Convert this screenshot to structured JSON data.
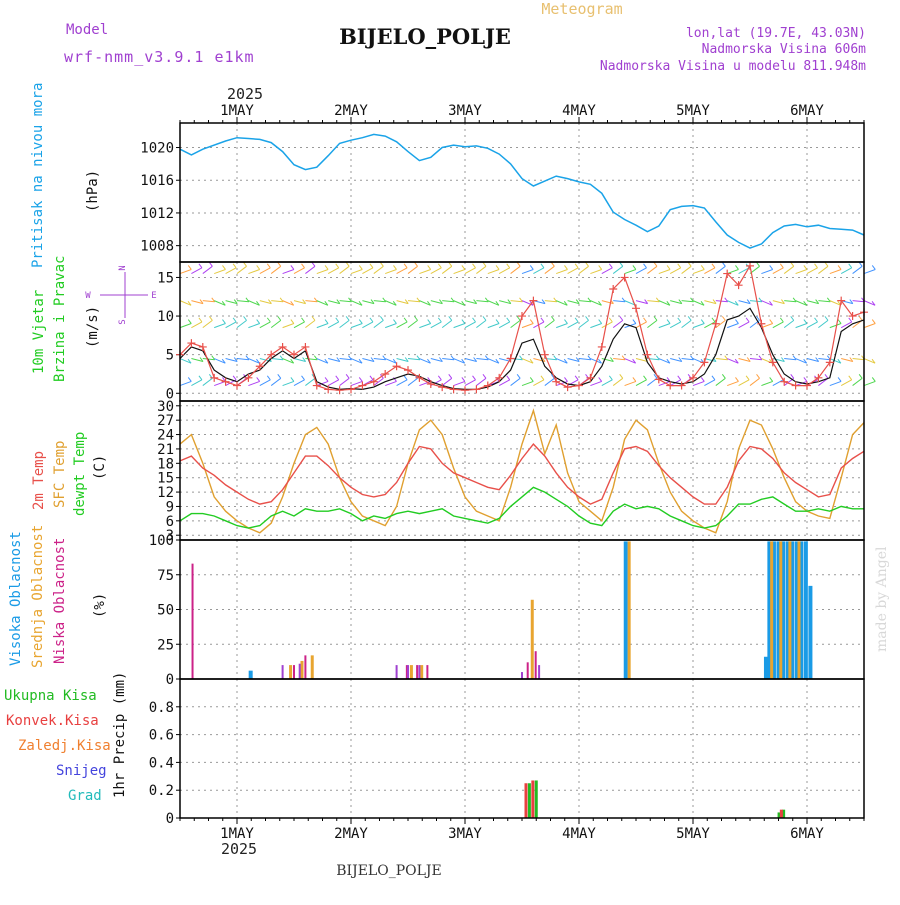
{
  "header": {
    "model_label": "Model",
    "model_name": "wrf-nmm_v3.9.1 e1km",
    "title": "BIJELO_POLJE",
    "subtitle": "Meteogram",
    "lonlat": "lon,lat (19.7E, 43.03N)",
    "altitude": "Nadmorska Visina 606m",
    "model_altitude": "Nadmorska Visina u modelu 811.948m",
    "credit": "made by Angel",
    "footer": "BIJELO_POLJE"
  },
  "colors": {
    "pressure": "#1aa3e8",
    "t2m": "#e8504a",
    "sfc": "#e0a030",
    "dewpt": "#22cc22",
    "high_cloud": "#1a9be6",
    "mid_cloud": "#e8a530",
    "low_cloud": "#cc2288",
    "purple": "#a040d0",
    "total_precip": "#22bb22",
    "conv_precip": "#e84040",
    "frozen_precip": "#f08030",
    "snow": "#4444dd",
    "hail": "#22bbbb"
  },
  "time_axis": {
    "year": "2025",
    "labels": [
      "1MAY",
      "2MAY",
      "3MAY",
      "4MAY",
      "5MAY",
      "6MAY"
    ]
  },
  "panels": {
    "pressure": {
      "label": "Pritisak na nivou mora",
      "unit": "(hPa)"
    },
    "wind": {
      "label1": "10m Vjetar",
      "label2": "Brzina i Pravac",
      "unit": "(m/s)",
      "compass_n": "N",
      "compass_w": "W",
      "compass_e": "E",
      "compass_s": "S"
    },
    "temp": {
      "label1": "2m Temp",
      "label2": "SFC Temp",
      "label3": "dewpt Temp",
      "unit": "(C)"
    },
    "cloud": {
      "label1": "Visoka Oblacnost",
      "label2": "Srednja Oblacnost",
      "label3": "Niska Oblacnost",
      "unit": "(%)"
    },
    "precip": {
      "label1": "Ukupna Kisa",
      "label2": "Konvek.Kisa",
      "label3": "Zaledj.Kisa",
      "label4": "Snijeg",
      "label5": "Grad",
      "unit": "1hr Precip (mm)"
    }
  },
  "chart_data": [
    {
      "type": "line",
      "name": "pressure",
      "x": [
        0.5,
        0.6,
        0.7,
        0.9,
        1.0,
        1.1,
        1.2,
        1.3,
        1.4,
        1.5,
        1.6,
        1.7,
        1.8,
        1.9,
        2.0,
        2.1,
        2.2,
        2.3,
        2.4,
        2.5,
        2.6,
        2.7,
        2.8,
        2.9,
        3.0,
        3.1,
        3.2,
        3.3,
        3.4,
        3.5,
        3.6,
        3.7,
        3.8,
        3.9,
        4.0,
        4.1,
        4.2,
        4.3,
        4.4,
        4.5,
        4.6,
        4.7,
        4.8,
        4.9,
        5.0,
        5.1,
        5.2,
        5.3,
        5.4,
        5.5,
        5.6,
        5.7,
        5.8,
        5.9,
        6.0,
        6.1,
        6.2,
        6.3,
        6.4,
        6.5
      ],
      "values": [
        1019.8,
        1019.1,
        1019.8,
        1020.8,
        1021.2,
        1021.1,
        1021.0,
        1020.6,
        1019.5,
        1017.9,
        1017.3,
        1017.6,
        1019.0,
        1020.5,
        1020.9,
        1021.2,
        1021.6,
        1021.4,
        1020.7,
        1019.5,
        1018.4,
        1018.8,
        1020.0,
        1020.3,
        1020.1,
        1020.2,
        1019.9,
        1019.2,
        1018.0,
        1016.2,
        1015.3,
        1015.9,
        1016.5,
        1016.2,
        1015.8,
        1015.5,
        1014.4,
        1012.1,
        1011.2,
        1010.5,
        1009.7,
        1010.4,
        1012.4,
        1012.8,
        1012.9,
        1012.6,
        1010.9,
        1009.3,
        1008.4,
        1007.7,
        1008.2,
        1009.6,
        1010.4,
        1010.6,
        1010.3,
        1010.5,
        1010.1,
        1010.0,
        1009.9,
        1009.3
      ],
      "ylim": [
        1006,
        1023
      ],
      "yticks": [
        1008,
        1012,
        1016,
        1020
      ],
      "xlim": [
        0.5,
        6.5
      ]
    },
    {
      "type": "line",
      "name": "wind",
      "x": [
        0.5,
        0.6,
        0.7,
        0.8,
        0.9,
        1.0,
        1.1,
        1.2,
        1.3,
        1.4,
        1.5,
        1.6,
        1.7,
        1.8,
        1.9,
        2.0,
        2.1,
        2.2,
        2.3,
        2.4,
        2.5,
        2.6,
        2.7,
        2.8,
        2.9,
        3.0,
        3.1,
        3.2,
        3.3,
        3.4,
        3.5,
        3.6,
        3.7,
        3.8,
        3.9,
        4.0,
        4.1,
        4.2,
        4.3,
        4.4,
        4.5,
        4.6,
        4.7,
        4.8,
        4.9,
        5.0,
        5.1,
        5.2,
        5.3,
        5.4,
        5.5,
        5.6,
        5.7,
        5.8,
        5.9,
        6.0,
        6.1,
        6.2,
        6.3,
        6.4,
        6.5
      ],
      "series": [
        {
          "values": [
            4.5,
            6.0,
            5.5,
            3.0,
            2.0,
            1.5,
            2.5,
            3.0,
            4.5,
            5.5,
            4.5,
            5.5,
            1.5,
            0.8,
            0.5,
            0.6,
            0.5,
            0.8,
            1.5,
            2.0,
            2.5,
            2.2,
            1.5,
            1.0,
            0.6,
            0.5,
            0.5,
            0.8,
            1.5,
            3.0,
            6.5,
            7.0,
            3.5,
            2.0,
            1.2,
            1.0,
            1.5,
            3.5,
            7.0,
            9.0,
            8.5,
            4.0,
            2.0,
            1.5,
            1.2,
            1.5,
            2.5,
            5.0,
            9.5,
            10.0,
            11.0,
            8.5,
            5.0,
            2.5,
            1.5,
            1.2,
            1.5,
            2.0,
            8.0,
            9.0,
            9.5
          ]
        },
        {
          "values": [
            5.0,
            6.5,
            6.0,
            2.0,
            1.5,
            1.0,
            2.0,
            3.5,
            5.0,
            6.0,
            5.0,
            6.0,
            1.0,
            0.5,
            0.4,
            0.5,
            1.0,
            1.5,
            2.5,
            3.5,
            3.0,
            2.0,
            1.2,
            0.8,
            0.5,
            0.4,
            0.5,
            1.0,
            2.0,
            4.5,
            10.0,
            12.0,
            5.0,
            1.5,
            0.8,
            1.0,
            2.0,
            6.0,
            13.5,
            15.0,
            11.0,
            5.0,
            1.8,
            1.0,
            1.0,
            2.0,
            4.0,
            9.0,
            15.5,
            14.0,
            16.5,
            9.0,
            4.0,
            1.5,
            1.0,
            1.0,
            2.0,
            4.0,
            12.0,
            10.0,
            10.5
          ]
        }
      ],
      "ylim": [
        -1,
        17
      ],
      "yticks": [
        0,
        5,
        10,
        15
      ],
      "xlim": [
        0.5,
        6.5
      ]
    },
    {
      "type": "line",
      "name": "temperature",
      "x": [
        0.5,
        0.6,
        0.7,
        0.8,
        0.9,
        1.0,
        1.1,
        1.2,
        1.3,
        1.4,
        1.5,
        1.6,
        1.7,
        1.8,
        1.9,
        2.0,
        2.1,
        2.2,
        2.3,
        2.4,
        2.5,
        2.6,
        2.7,
        2.8,
        2.9,
        3.0,
        3.1,
        3.2,
        3.3,
        3.4,
        3.5,
        3.6,
        3.7,
        3.8,
        3.9,
        4.0,
        4.1,
        4.2,
        4.3,
        4.4,
        4.5,
        4.6,
        4.7,
        4.8,
        4.9,
        5.0,
        5.1,
        5.2,
        5.3,
        5.4,
        5.5,
        5.6,
        5.7,
        5.8,
        5.9,
        6.0,
        6.1,
        6.2,
        6.3,
        6.4,
        6.5
      ],
      "series": [
        {
          "name": "2m Temp",
          "values": [
            18.5,
            19.5,
            17.0,
            15.5,
            13.5,
            12.0,
            10.5,
            9.5,
            10.0,
            12.5,
            16.0,
            19.5,
            19.5,
            17.5,
            15.0,
            13.0,
            11.5,
            11.0,
            11.5,
            14.0,
            18.0,
            21.5,
            21.0,
            18.0,
            16.0,
            15.0,
            14.0,
            13.0,
            12.5,
            15.5,
            19.0,
            22.0,
            19.5,
            16.0,
            13.0,
            11.0,
            9.5,
            10.5,
            16.0,
            21.0,
            21.5,
            20.5,
            17.5,
            15.0,
            13.0,
            11.0,
            9.5,
            9.5,
            13.0,
            18.5,
            21.5,
            21.0,
            19.0,
            16.0,
            14.0,
            12.5,
            11.0,
            11.5,
            17.0,
            19.0,
            20.5
          ]
        },
        {
          "name": "SFC Temp",
          "values": [
            22.0,
            24.0,
            18.0,
            11.0,
            8.0,
            6.0,
            4.5,
            3.5,
            5.5,
            11.0,
            18.0,
            24.0,
            25.5,
            22.0,
            15.0,
            10.0,
            7.0,
            6.0,
            5.0,
            9.0,
            18.0,
            25.0,
            27.0,
            24.0,
            17.0,
            11.0,
            8.0,
            7.0,
            6.0,
            13.0,
            22.0,
            29.0,
            20.0,
            26.0,
            16.0,
            10.0,
            8.0,
            6.0,
            13.0,
            23.0,
            27.0,
            25.0,
            18.0,
            12.0,
            8.0,
            6.0,
            4.5,
            3.5,
            10.0,
            21.0,
            27.0,
            26.0,
            21.0,
            15.0,
            10.0,
            8.0,
            7.0,
            6.5,
            15.0,
            24.0,
            26.5
          ]
        },
        {
          "name": "dewpt Temp",
          "values": [
            6.0,
            7.5,
            7.5,
            7.0,
            6.0,
            5.0,
            4.5,
            5.0,
            7.0,
            8.0,
            7.0,
            8.5,
            8.0,
            8.0,
            8.5,
            7.5,
            6.0,
            7.0,
            6.5,
            7.5,
            8.0,
            7.5,
            8.0,
            8.5,
            7.0,
            6.5,
            6.0,
            5.5,
            6.5,
            9.0,
            11.0,
            13.0,
            12.0,
            10.5,
            9.0,
            7.0,
            5.5,
            5.0,
            8.0,
            9.5,
            8.5,
            9.0,
            8.5,
            7.0,
            6.0,
            5.0,
            4.5,
            5.0,
            7.0,
            9.5,
            9.5,
            10.5,
            11.0,
            9.5,
            8.0,
            8.0,
            8.5,
            8.0,
            9.0,
            8.5,
            8.5
          ]
        }
      ],
      "ylim": [
        2,
        31
      ],
      "yticks": [
        3,
        6,
        9,
        12,
        15,
        18,
        21,
        24,
        27,
        30
      ],
      "xlim": [
        0.5,
        6.5
      ]
    },
    {
      "type": "bar",
      "name": "cloud cover",
      "series": [
        {
          "name": "high",
          "x": [
            1.12,
            4.41,
            5.64,
            5.67,
            5.71,
            5.75,
            5.79,
            5.83,
            5.87,
            5.91,
            5.95,
            5.99,
            6.03
          ],
          "values": [
            6,
            99,
            16,
            99,
            99,
            99,
            99,
            99,
            99,
            99,
            99,
            99,
            67
          ]
        },
        {
          "name": "mid",
          "x": [
            1.47,
            1.57,
            1.66,
            2.53,
            2.62,
            3.59,
            4.44,
            5.69,
            5.77,
            5.85,
            5.93
          ],
          "values": [
            10,
            13,
            17,
            10,
            10,
            57,
            99,
            99,
            99,
            99,
            99
          ]
        },
        {
          "name": "low",
          "x": [
            0.61,
            1.5,
            1.6,
            2.49,
            2.58,
            2.67,
            3.55,
            3.62
          ],
          "values": [
            83,
            10,
            17,
            10,
            10,
            10,
            12,
            20
          ]
        },
        {
          "name": "other",
          "x": [
            1.4,
            1.55,
            2.4,
            2.5,
            2.6,
            3.5,
            3.65
          ],
          "values": [
            10,
            11,
            10,
            10,
            10,
            5,
            10
          ]
        }
      ],
      "ylim": [
        0,
        100
      ],
      "yticks": [
        0,
        25,
        50,
        75,
        100
      ],
      "xlim": [
        0.5,
        6.5
      ]
    },
    {
      "type": "bar",
      "name": "precipitation",
      "series": [
        {
          "name": "Ukupna Kisa",
          "x": [
            3.565,
            3.625,
            5.755,
            5.795
          ],
          "values": [
            0.25,
            0.27,
            0.04,
            0.06
          ]
        },
        {
          "name": "Konvek.Kisa",
          "x": [
            3.535,
            3.595,
            5.775
          ],
          "values": [
            0.25,
            0.27,
            0.06
          ]
        }
      ],
      "ylim": [
        0,
        1.0
      ],
      "yticks": [
        0,
        0.2,
        0.4,
        0.6,
        0.8
      ],
      "xlim": [
        0.5,
        6.5
      ]
    }
  ]
}
